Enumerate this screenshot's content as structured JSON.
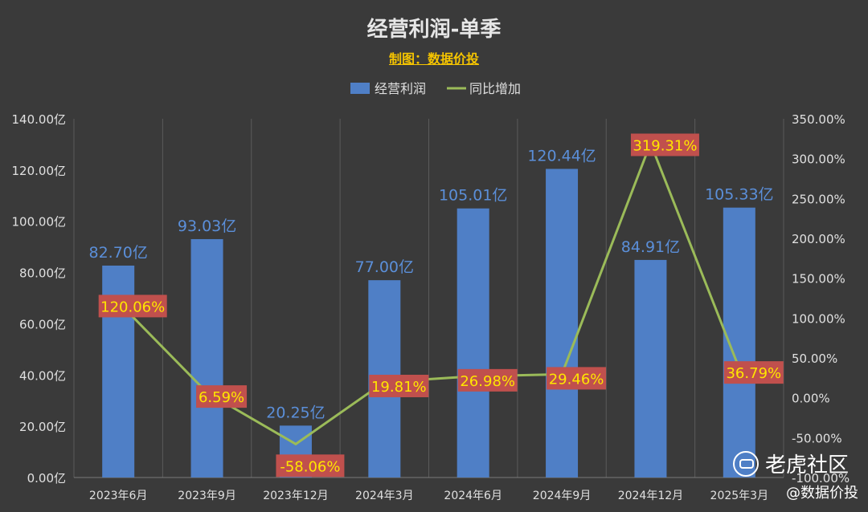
{
  "title": "经营利润-单季",
  "subtitle": "制图：数据价投",
  "watermark": "老虎社区",
  "credit": "@数据价投",
  "colors": {
    "background": "#3a3a3a",
    "bar": "#4f7fc6",
    "line": "#9bbb59",
    "bar_label": "#5b8fd9",
    "pct_label_text": "#ffe600",
    "pct_label_box": "#c0504d",
    "axis_text": "#e0e0e0",
    "grid": "#5a5a5a"
  },
  "chart_data": {
    "type": "bar",
    "categories": [
      "2023年6月",
      "2023年9月",
      "2023年12月",
      "2024年3月",
      "2024年6月",
      "2024年9月",
      "2024年12月",
      "2025年3月"
    ],
    "series": [
      {
        "name": "经营利润",
        "type": "bar",
        "axis": "left",
        "values": [
          82.7,
          93.03,
          20.25,
          77.0,
          105.01,
          120.44,
          84.91,
          105.33
        ],
        "labels": [
          "82.70亿",
          "93.03亿",
          "20.25亿",
          "77.00亿",
          "105.01亿",
          "120.44亿",
          "84.91亿",
          "105.33亿"
        ]
      },
      {
        "name": "同比增加",
        "type": "line",
        "axis": "right",
        "values": [
          120.06,
          6.59,
          -58.06,
          19.81,
          26.98,
          29.46,
          319.31,
          36.79
        ],
        "labels": [
          "120.06%",
          "6.59%",
          "-58.06%",
          "19.81%",
          "26.98%",
          "29.46%",
          "319.31%",
          "36.79%"
        ]
      }
    ],
    "y_left": {
      "range": [
        0,
        140
      ],
      "ticks": [
        "0.00亿",
        "20.00亿",
        "40.00亿",
        "60.00亿",
        "80.00亿",
        "100.00亿",
        "120.00亿",
        "140.00亿"
      ]
    },
    "y_right": {
      "range": [
        -100,
        350
      ],
      "ticks": [
        "-100.00%",
        "-50.00%",
        "0.00%",
        "50.00%",
        "100.00%",
        "150.00%",
        "200.00%",
        "250.00%",
        "300.00%",
        "350.00%"
      ]
    },
    "grid": "vertical",
    "legend": "top-center"
  }
}
